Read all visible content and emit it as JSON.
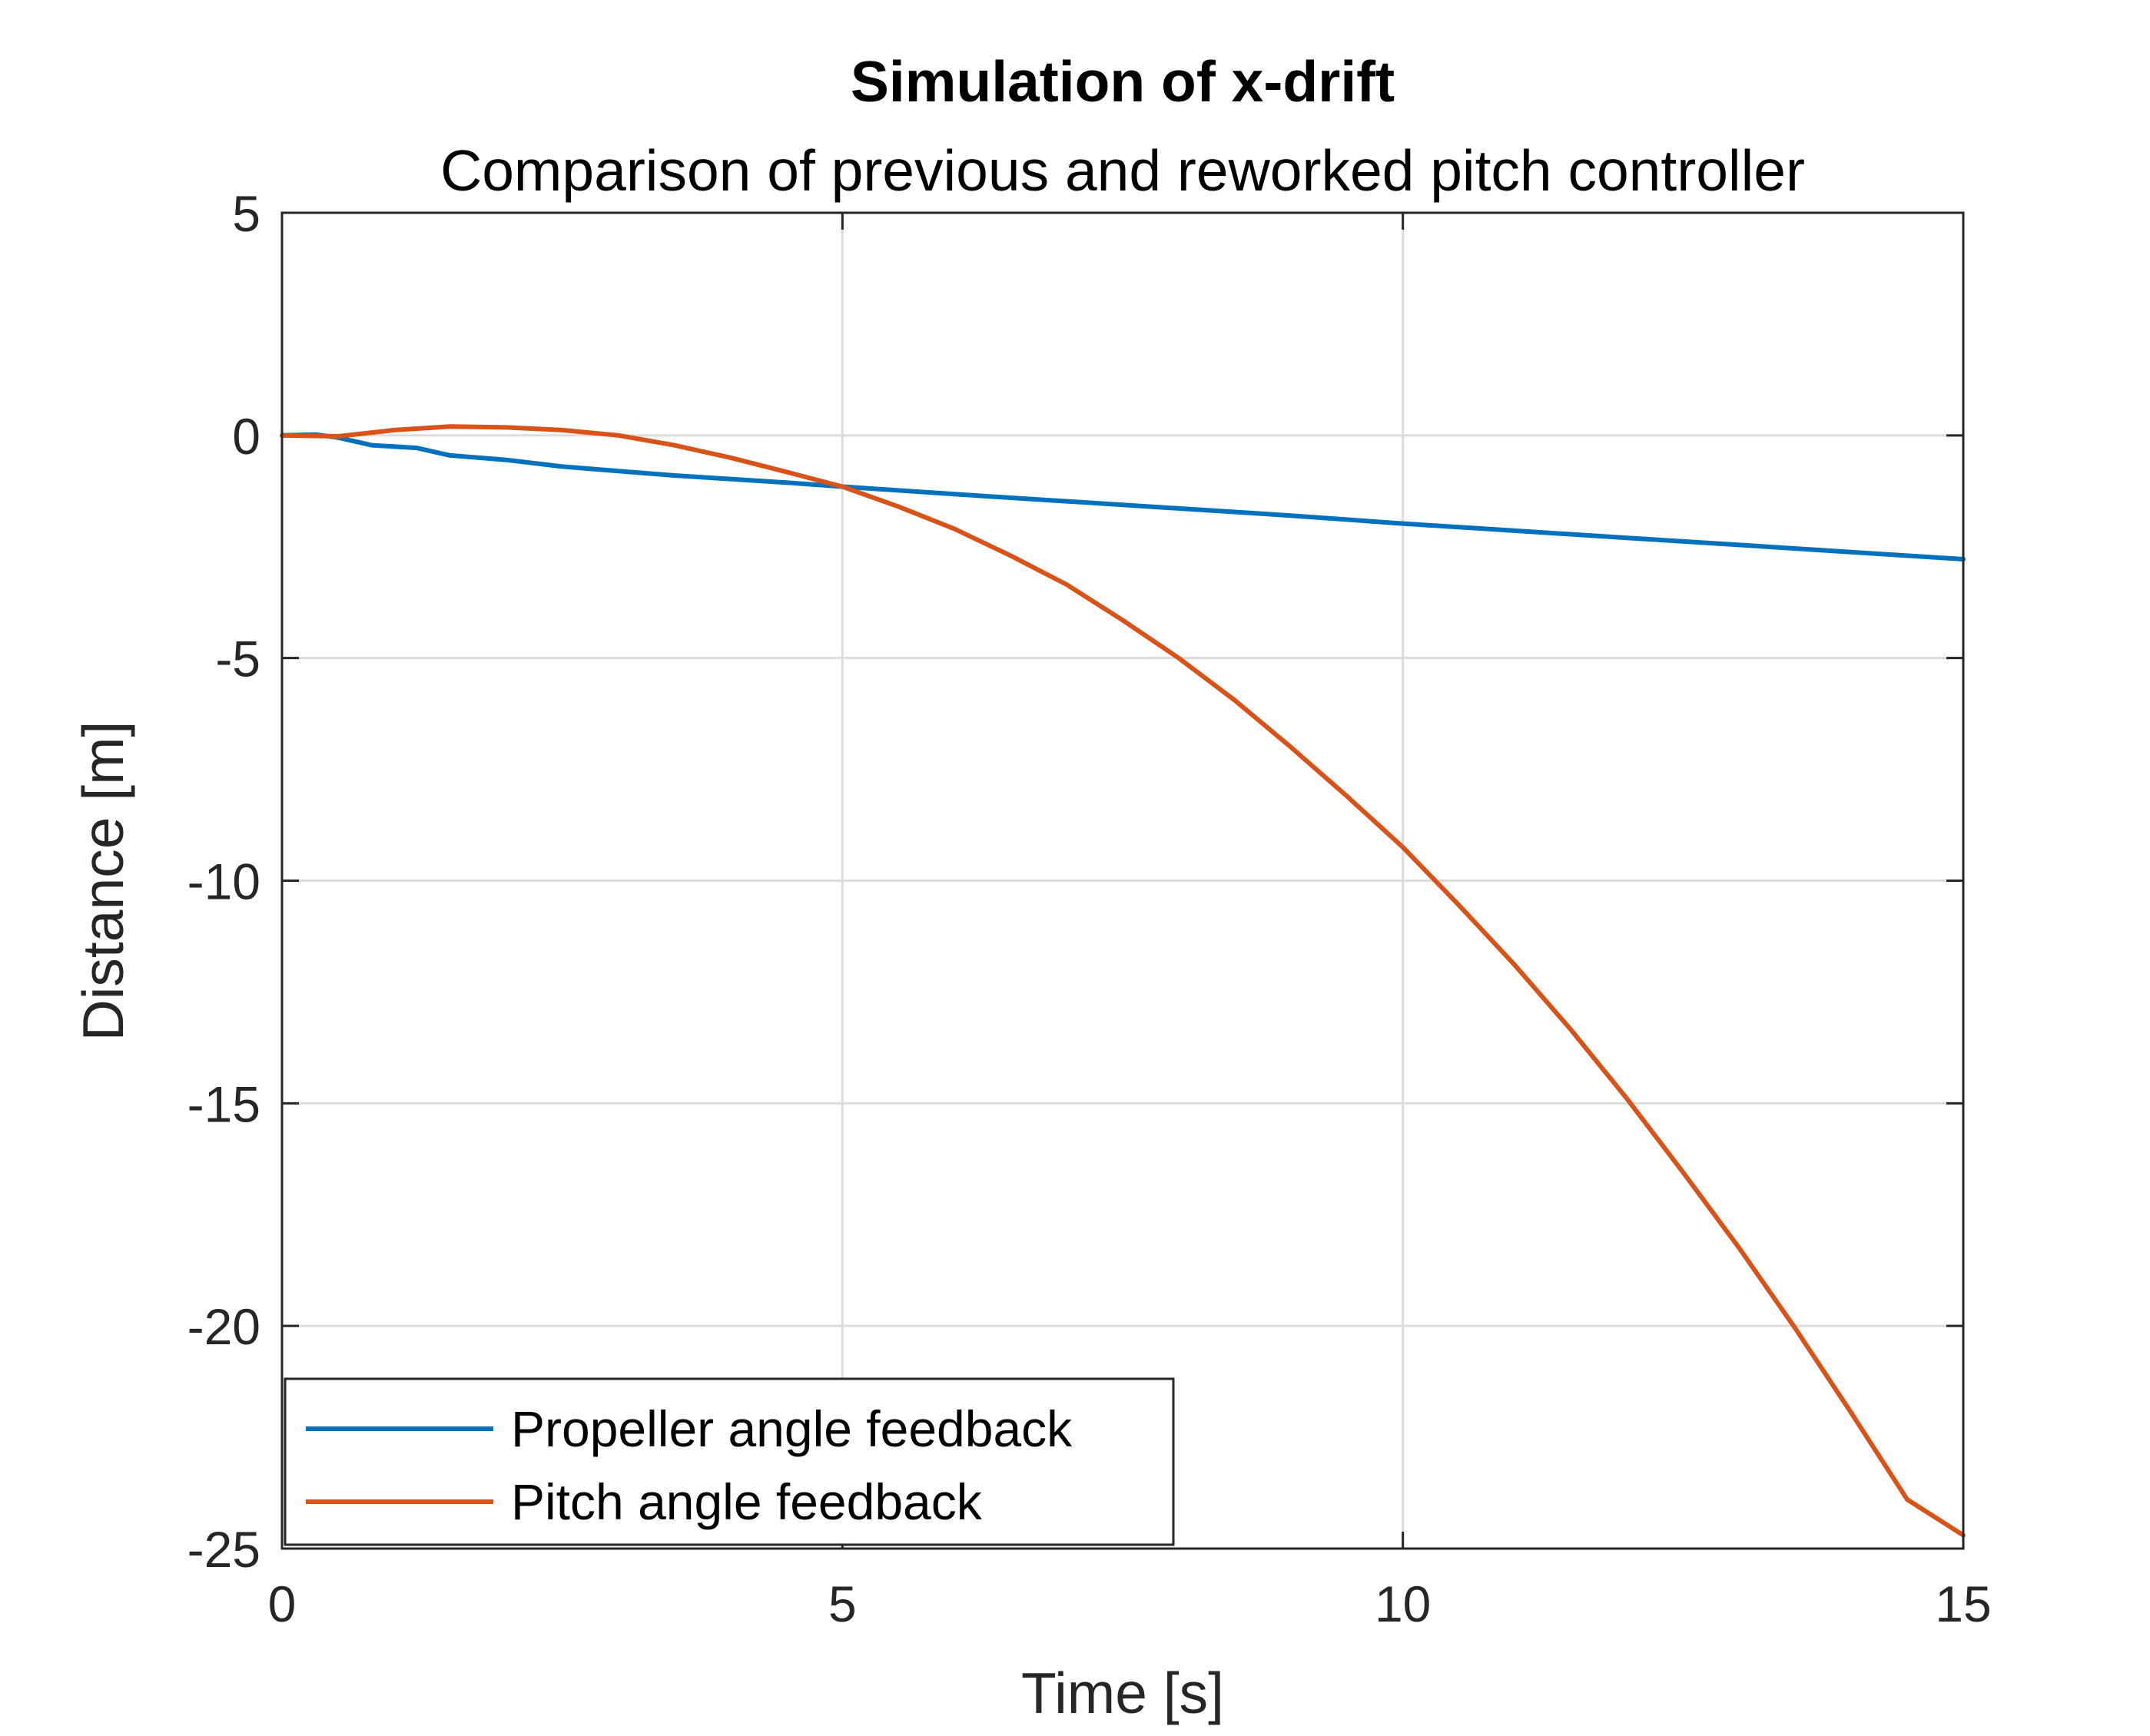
{
  "chart_data": {
    "type": "line",
    "title": "Simulation of x-drift",
    "subtitle": "Comparison of previous and reworked pitch controller",
    "xlabel": "Time [s]",
    "ylabel": "Distance [m]",
    "xlim": [
      0,
      15
    ],
    "ylim": [
      -25,
      5
    ],
    "xticks": [
      0,
      5,
      10,
      15
    ],
    "yticks": [
      5,
      0,
      -5,
      -10,
      -15,
      -20,
      -25
    ],
    "xtick_labels": [
      "0",
      "5",
      "10",
      "15"
    ],
    "ytick_labels": [
      "5",
      "0",
      "-5",
      "-10",
      "-15",
      "-20",
      "-25"
    ],
    "grid": true,
    "legend_position": "bottom-left",
    "series": [
      {
        "name": "Propeller angle feedback",
        "color": "#0072BD",
        "x": [
          0,
          0.3,
          0.5,
          0.8,
          1.2,
          1.5,
          2.0,
          2.5,
          3.0,
          3.5,
          4.0,
          4.5,
          5.0,
          6.0,
          7.0,
          8.0,
          9.0,
          10.0,
          11.0,
          12.0,
          13.0,
          14.0,
          15.0
        ],
        "y": [
          0,
          0.02,
          -0.05,
          -0.22,
          -0.28,
          -0.45,
          -0.55,
          -0.7,
          -0.8,
          -0.9,
          -0.98,
          -1.06,
          -1.15,
          -1.32,
          -1.48,
          -1.64,
          -1.8,
          -1.98,
          -2.14,
          -2.3,
          -2.46,
          -2.62,
          -2.78
        ]
      },
      {
        "name": "Pitch angle feedback",
        "color": "#D95319",
        "x": [
          0,
          0.5,
          1.0,
          1.5,
          2.0,
          2.5,
          3.0,
          3.5,
          4.0,
          4.5,
          5.0,
          5.5,
          6.0,
          6.5,
          7.0,
          7.5,
          8.0,
          8.5,
          9.0,
          9.5,
          10.0,
          10.5,
          11.0,
          11.5,
          12.0,
          12.5,
          13.0,
          13.5,
          14.0,
          14.5,
          15.0
        ],
        "y": [
          0,
          -0.02,
          0.12,
          0.2,
          0.18,
          0.12,
          0.0,
          -0.22,
          -0.5,
          -0.82,
          -1.15,
          -1.6,
          -2.1,
          -2.7,
          -3.35,
          -4.15,
          -5.0,
          -5.95,
          -7.0,
          -8.1,
          -9.25,
          -10.55,
          -11.9,
          -13.35,
          -14.9,
          -16.55,
          -18.25,
          -20.05,
          -21.95,
          -23.9,
          -24.7
        ]
      }
    ]
  }
}
